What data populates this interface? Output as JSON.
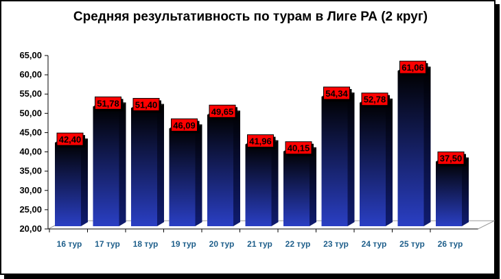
{
  "chart_data": {
    "type": "bar",
    "title": "Средняя результативность по турам в Лиге РА (2 круг)",
    "categories": [
      "16 тур",
      "17 тур",
      "18 тур",
      "19 тур",
      "20 тур",
      "21 тур",
      "22 тур",
      "23 тур",
      "24 тур",
      "25 тур",
      "26 тур"
    ],
    "values": [
      42.4,
      51.78,
      51.4,
      46.09,
      49.65,
      41.96,
      40.15,
      54.34,
      52.78,
      61.06,
      37.5
    ],
    "value_labels": [
      "42,40",
      "51,78",
      "51,40",
      "46,09",
      "49,65",
      "41,96",
      "40,15",
      "54,34",
      "52,78",
      "61,06",
      "37,50"
    ],
    "ylim": [
      20,
      65
    ],
    "yticks": [
      "20,00",
      "25,00",
      "30,00",
      "35,00",
      "40,00",
      "45,00",
      "50,00",
      "55,00",
      "60,00",
      "65,00"
    ],
    "xlabel": "",
    "ylabel": "",
    "grid": false,
    "legend": "none",
    "colors": {
      "bar_top": "#000000",
      "bar_bottom": "#2a3fc4",
      "label_bg": "#ff0000",
      "category_text": "#1f5f8b",
      "floor": "#1c2ea8"
    }
  }
}
